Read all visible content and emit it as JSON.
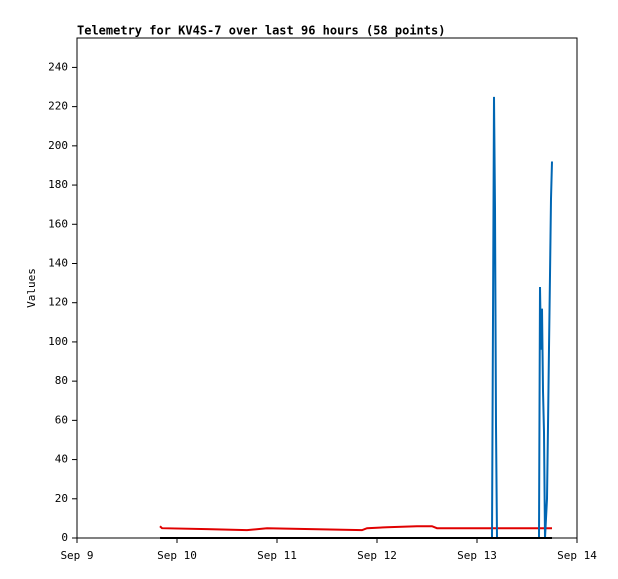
{
  "chart_data": {
    "type": "line",
    "title": "Telemetry for KV4S-7 over last 96 hours (58 points)",
    "y_label": "Values",
    "xlim": [
      9,
      14
    ],
    "xticks": [
      {
        "value": 9,
        "label": "Sep 9"
      },
      {
        "value": 10,
        "label": "Sep 10"
      },
      {
        "value": 11,
        "label": "Sep 11"
      },
      {
        "value": 12,
        "label": "Sep 12"
      },
      {
        "value": 13,
        "label": "Sep 13"
      },
      {
        "value": 14,
        "label": "Sep 14"
      }
    ],
    "ylim": [
      0,
      255
    ],
    "yticks": [
      0,
      20,
      40,
      60,
      80,
      100,
      120,
      140,
      160,
      180,
      200,
      220,
      240
    ],
    "series": [
      {
        "color": "#e00000",
        "x": [
          9.83,
          9.85,
          10.3,
          10.7,
          10.9,
          11.85,
          11.9,
          12.1,
          12.4,
          12.55,
          12.6,
          13.75
        ],
        "values": [
          6,
          5,
          4.5,
          4,
          5,
          4,
          5,
          5.5,
          6,
          6,
          5,
          5
        ]
      },
      {
        "color": "#0066b3",
        "x": [
          9.83,
          13.15,
          13.16,
          13.17,
          13.18,
          13.19,
          13.2,
          13.62,
          13.63,
          13.64,
          13.65,
          13.66,
          13.67,
          13.68,
          13.69,
          13.7,
          13.71,
          13.72,
          13.73,
          13.74,
          13.75
        ],
        "values": [
          0,
          0,
          112,
          225,
          168,
          57,
          0,
          0,
          128,
          96,
          117,
          75,
          54,
          0,
          10,
          20,
          57,
          97,
          134,
          173,
          192
        ]
      },
      {
        "color": "#000000",
        "x": [
          9.83,
          13.75
        ],
        "values": [
          0,
          0
        ]
      }
    ]
  }
}
